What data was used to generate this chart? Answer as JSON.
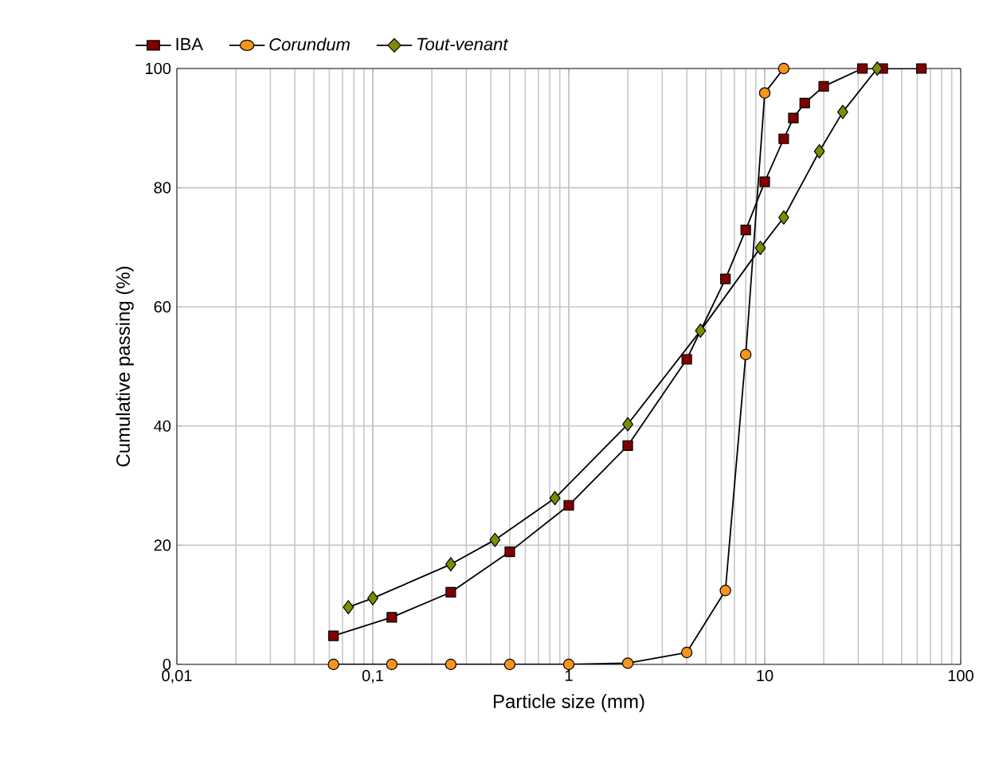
{
  "chart_data": {
    "type": "line",
    "xlabel": "Particle size (mm)",
    "ylabel": "Cumulative passing (%)",
    "log": "x",
    "xlim": [
      0.01,
      100
    ],
    "ylim": [
      0,
      100
    ],
    "xticks": [
      {
        "value": 0.01,
        "label": "0,01"
      },
      {
        "value": 0.1,
        "label": "0,1"
      },
      1,
      10,
      100
    ],
    "yticks": [
      0,
      20,
      40,
      60,
      80,
      100
    ],
    "grid": true,
    "legend": "top",
    "line_style": "solid",
    "series": [
      {
        "name": "IBA",
        "color": "#7f0000",
        "marker": "square",
        "x": [
          0.063,
          0.125,
          0.25,
          0.5,
          1,
          2,
          4,
          6.3,
          8,
          10,
          12.5,
          14,
          16,
          20,
          31.5,
          40,
          63
        ],
        "values": [
          4.8,
          7.9,
          12.1,
          18.9,
          26.7,
          36.7,
          51.2,
          64.7,
          72.9,
          81.0,
          88.2,
          91.7,
          94.2,
          97.0,
          100,
          100,
          100
        ]
      },
      {
        "name": "*Corundum*",
        "color": "#f7941d",
        "marker": "circle",
        "x": [
          0.063,
          0.125,
          0.25,
          0.5,
          1,
          2,
          4,
          6.3,
          8,
          10,
          12.5
        ],
        "values": [
          0,
          0,
          0,
          0,
          0,
          0.2,
          2.0,
          12.4,
          52.0,
          95.9,
          100
        ]
      },
      {
        "name": "*Tout-venant*",
        "color": "#7f8c00",
        "marker": "diamond",
        "x": [
          0.075,
          0.1,
          0.25,
          0.42,
          0.85,
          2,
          4.7,
          9.5,
          12.5,
          19,
          25,
          37.5
        ],
        "values": [
          9.6,
          11.1,
          16.8,
          20.9,
          27.9,
          40.3,
          56.0,
          69.9,
          75.0,
          86.1,
          92.7,
          100
        ]
      }
    ]
  }
}
